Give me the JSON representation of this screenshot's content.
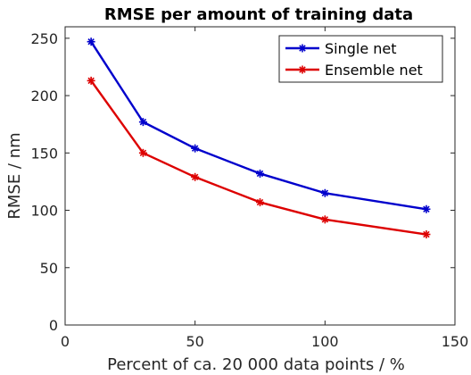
{
  "chart_data": {
    "type": "line",
    "title": "RMSE per amount of training data",
    "xlabel": "Percent of ca. 20 000 data points / %",
    "ylabel": "RMSE / nm",
    "xlim": [
      0,
      150
    ],
    "ylim": [
      0,
      260
    ],
    "xticks": [
      0,
      50,
      100,
      150
    ],
    "yticks": [
      0,
      50,
      100,
      150,
      200,
      250
    ],
    "grid": false,
    "legend_position": "top-right",
    "series": [
      {
        "name": "Single net",
        "color": "#0000cc",
        "marker": "asterisk",
        "x": [
          10,
          30,
          50,
          75,
          100,
          139
        ],
        "y": [
          247,
          177,
          154,
          132,
          115,
          101
        ]
      },
      {
        "name": "Ensemble net",
        "color": "#dd0000",
        "marker": "asterisk",
        "x": [
          10,
          30,
          50,
          75,
          100,
          139
        ],
        "y": [
          213,
          150,
          129,
          107,
          92,
          79
        ]
      }
    ]
  }
}
